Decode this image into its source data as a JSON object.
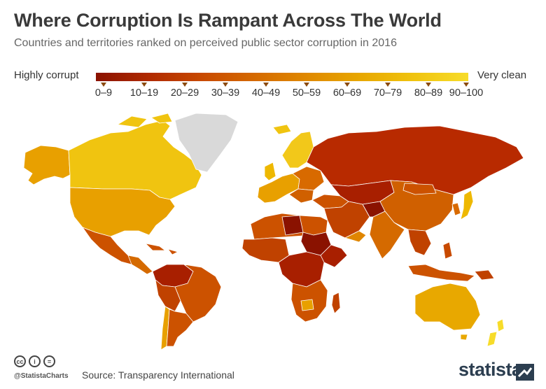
{
  "title": "Where Corruption Is Rampant Across The World",
  "subtitle": "Countries and territories ranked on perceived public sector corruption in 2016",
  "legend": {
    "low_label": "Highly corrupt",
    "high_label": "Very clean",
    "ranges": [
      "0–9",
      "10–19",
      "20–29",
      "30–39",
      "40–49",
      "50–59",
      "60–69",
      "70–79",
      "80–89",
      "90–100"
    ],
    "colors": [
      "#8a1200",
      "#a81f00",
      "#be3a00",
      "#cc5200",
      "#d86a00",
      "#e08600",
      "#e8a000",
      "#eeb800",
      "#f2c81a",
      "#f7dc2a"
    ]
  },
  "map": {
    "regions": [
      {
        "name": "Greenland",
        "color": "#d9d9d9"
      },
      {
        "name": "Canada",
        "color": "#f0c410"
      },
      {
        "name": "Alaska/USA",
        "color": "#e8a000"
      },
      {
        "name": "Mexico",
        "color": "#cc5200"
      },
      {
        "name": "South America",
        "color": "#c84a00"
      },
      {
        "name": "Europe",
        "color": "#e8a000"
      },
      {
        "name": "Russia",
        "color": "#b82a00"
      },
      {
        "name": "Africa",
        "color": "#c04200"
      },
      {
        "name": "Middle East",
        "color": "#cc5a00"
      },
      {
        "name": "Asia",
        "color": "#cc5200"
      },
      {
        "name": "Australia",
        "color": "#e8a800"
      },
      {
        "name": "New Zealand",
        "color": "#f7dc2a"
      }
    ]
  },
  "footer": {
    "handle": "@StatistaCharts",
    "source": "Source: Transparency International",
    "brand": "statista",
    "cc_icons": [
      "cc",
      "i",
      "="
    ]
  }
}
